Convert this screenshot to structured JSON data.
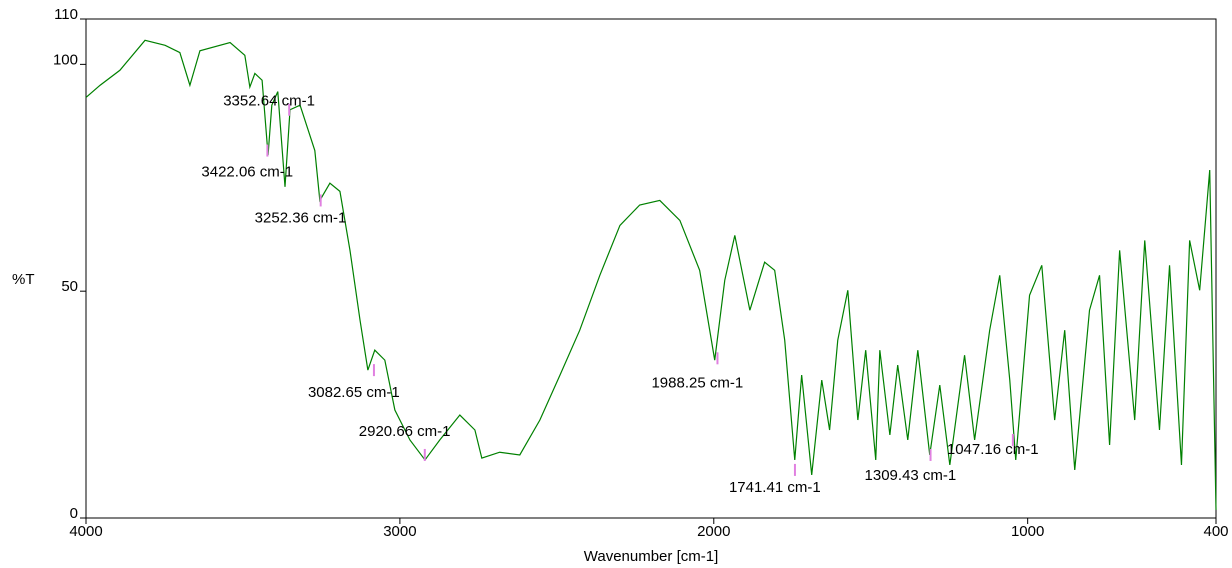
{
  "chart_data": {
    "type": "line",
    "x_label": "Wavenumber [cm-1]",
    "y_label": "%T",
    "xlim": [
      4000,
      400
    ],
    "ylim": [
      0,
      110
    ],
    "xticks": [
      4000,
      3000,
      2000,
      1000,
      400
    ],
    "yticks": [
      0,
      50,
      100,
      110
    ],
    "series": [
      {
        "color": "#008000",
        "x": [
          4000,
          3955,
          3892,
          3812,
          3748,
          3701,
          3669,
          3637,
          3541,
          3494,
          3478,
          3462,
          3439,
          3420,
          3408,
          3389,
          3366,
          3350,
          3318,
          3271,
          3255,
          3223,
          3191,
          3159,
          3127,
          3102,
          3080,
          3048,
          3016,
          2968,
          2920,
          2873,
          2809,
          2761,
          2739,
          2682,
          2618,
          2554,
          2490,
          2427,
          2363,
          2299,
          2236,
          2172,
          2108,
          2045,
          1997,
          1965,
          1933,
          1885,
          1838,
          1806,
          1774,
          1742,
          1720,
          1688,
          1656,
          1631,
          1605,
          1573,
          1541,
          1516,
          1484,
          1471,
          1439,
          1414,
          1382,
          1350,
          1312,
          1280,
          1248,
          1201,
          1169,
          1121,
          1089,
          1057,
          1038,
          994,
          955,
          914,
          882,
          850,
          803,
          771,
          739,
          707,
          659,
          627,
          580,
          548,
          510,
          484,
          452,
          420,
          400
        ],
        "values": [
          92.7,
          95.4,
          98.7,
          105.3,
          104.2,
          102.6,
          95.4,
          103,
          104.8,
          102,
          95,
          98,
          96.5,
          80,
          91,
          94,
          73,
          90,
          91,
          81,
          70,
          73.8,
          72,
          59,
          43.6,
          32.6,
          37,
          34.8,
          23.8,
          17.2,
          12.8,
          17.2,
          22.7,
          19.4,
          13.2,
          14.5,
          13.9,
          21.6,
          31.5,
          41.4,
          53.5,
          64.5,
          69,
          70,
          65.6,
          54.6,
          34.8,
          52.4,
          62.3,
          45.8,
          56.4,
          54.6,
          39.2,
          12.8,
          31.5,
          9.5,
          30.4,
          19.4,
          39.2,
          50.2,
          21.6,
          37,
          12.8,
          37,
          18.3,
          33.7,
          17.2,
          37,
          13.9,
          29.3,
          11.7,
          35.9,
          17.2,
          41.4,
          53.5,
          30.4,
          12.8,
          49.1,
          55.7,
          21.6,
          41.4,
          10.6,
          45.8,
          53.5,
          16.1,
          59,
          21.6,
          61.2,
          19.4,
          55.7,
          11.7,
          61.2,
          50.2,
          76.7,
          1.8
        ]
      }
    ],
    "annotations": [
      {
        "text": "3352.64 cm-1",
        "x": 3352.64,
        "y": 90
      },
      {
        "text": "3422.06 cm-1",
        "x": 3422.06,
        "y": 81
      },
      {
        "text": "3252.36 cm-1",
        "x": 3252.36,
        "y": 70
      },
      {
        "text": "3082.65 cm-1",
        "x": 3082.65,
        "y": 32.6
      },
      {
        "text": "2920.66 cm-1",
        "x": 2920.66,
        "y": 13.9
      },
      {
        "text": "1988.25 cm-1",
        "x": 1988.25,
        "y": 35.2
      },
      {
        "text": "1741.41 cm-1",
        "x": 1741.41,
        "y": 10.6
      },
      {
        "text": "1309.43 cm-1",
        "x": 1309.43,
        "y": 13.9
      },
      {
        "text": "1047.16 cm-1",
        "x": 1047.16,
        "y": 17.2
      }
    ]
  }
}
